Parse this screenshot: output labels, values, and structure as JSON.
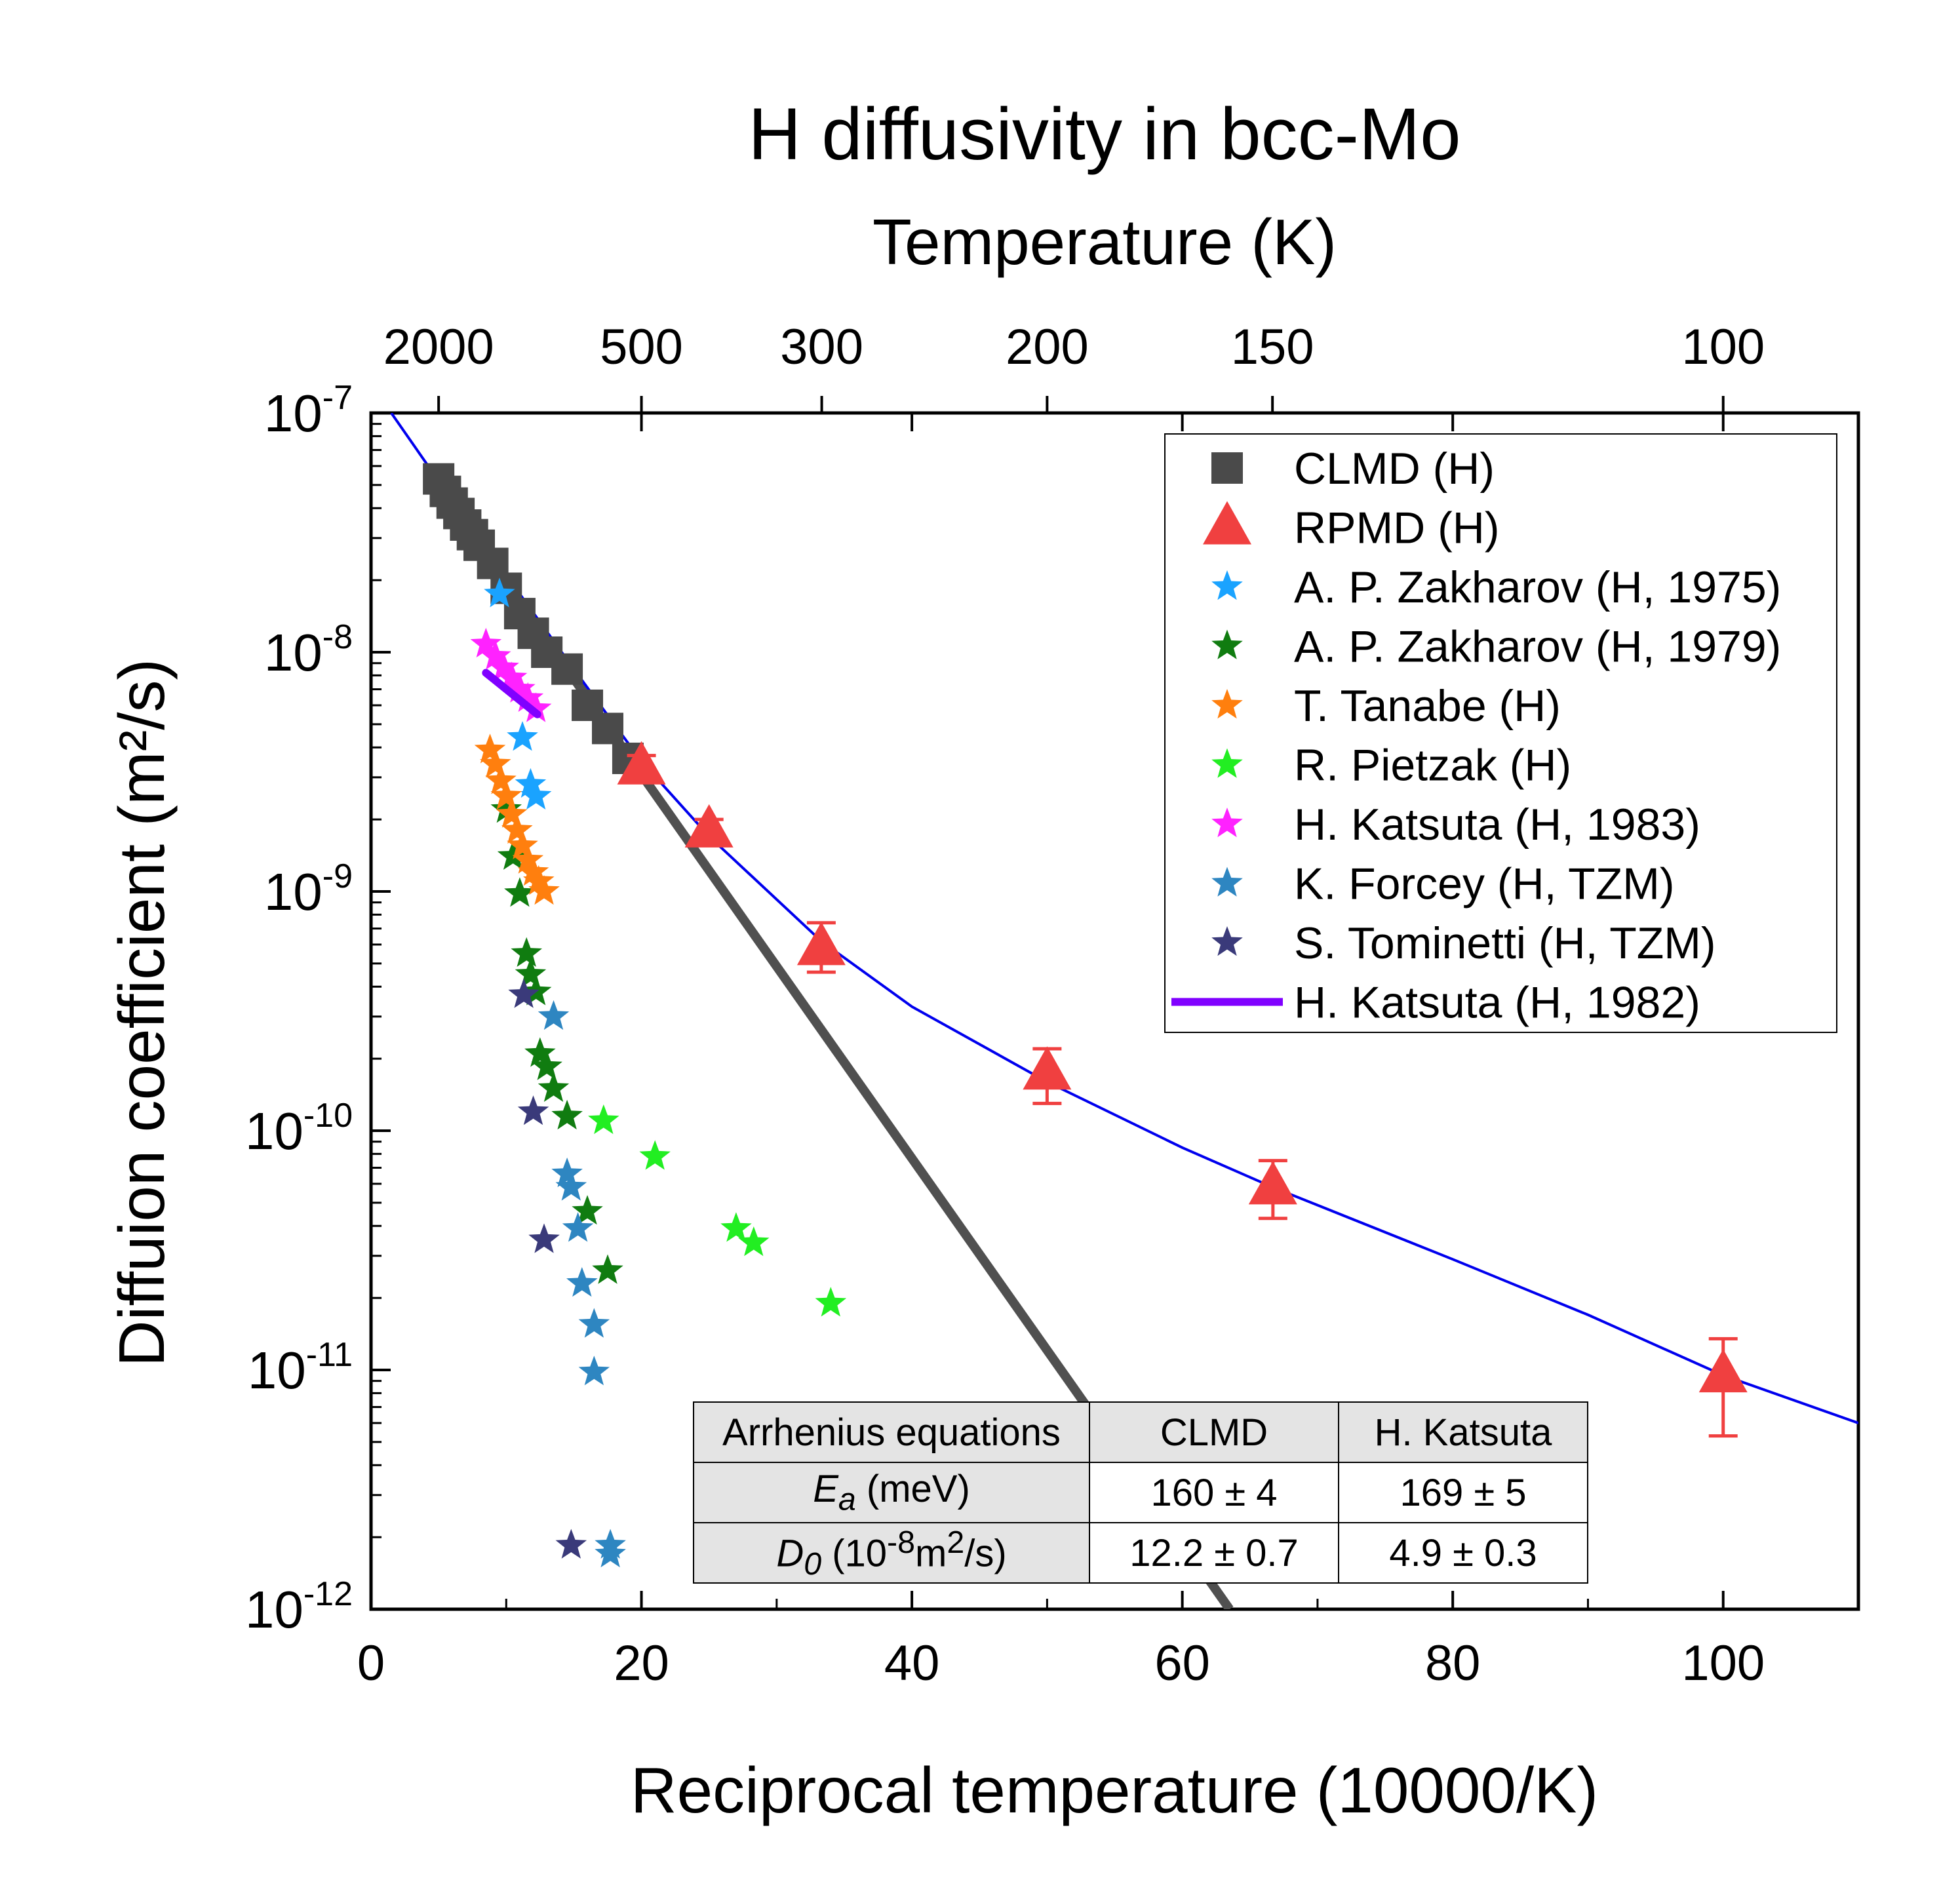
{
  "chart_data": {
    "type": "scatter",
    "title": "H diffusivity in bcc-Mo",
    "top_axis_label": "Temperature (K)",
    "top_ticks": [
      2000,
      500,
      300,
      200,
      150,
      100
    ],
    "xlabel": "Reciprocal temperature (10000/K)",
    "ylabel": "Diffuion coefficient (m²/s)",
    "xlim": [
      0,
      110
    ],
    "ylim": [
      1e-12,
      1e-07
    ],
    "yscale": "log",
    "x_ticks": [
      0,
      20,
      40,
      60,
      80,
      100
    ],
    "y_tick_labels": [
      "10-12",
      "10-11",
      "10-10",
      "10-9",
      "10-8",
      "10-7"
    ],
    "legend_position": "top-right",
    "series": [
      {
        "name": "CLMD (H)",
        "marker": "square",
        "color": "#4a4a4a",
        "x": [
          5,
          5.5,
          6,
          6.5,
          7,
          7.5,
          8,
          9,
          10,
          11,
          12,
          13,
          14.5,
          16,
          17.5,
          19
        ],
        "y": [
          5.3e-08,
          4.7e-08,
          4.2e-08,
          3.8e-08,
          3.4e-08,
          3.1e-08,
          2.8e-08,
          2.35e-08,
          1.85e-08,
          1.45e-08,
          1.2e-08,
          1e-08,
          8.5e-09,
          6e-09,
          4.8e-09,
          3.6e-09
        ]
      },
      {
        "name": "RPMD (H)",
        "marker": "triangle",
        "color": "#f04040",
        "x": [
          20,
          25,
          33.3,
          50,
          66.7,
          100
        ],
        "y": [
          3.3e-09,
          1.8e-09,
          5.8e-10,
          1.75e-10,
          5.8e-11,
          9.5e-12
        ],
        "err_low": [
          2.9e-09,
          1.6e-09,
          4.6e-10,
          1.3e-10,
          4.3e-11,
          5.3e-12
        ],
        "err_high": [
          3.7e-09,
          2e-09,
          7.4e-10,
          2.2e-10,
          7.5e-11,
          1.35e-11
        ]
      },
      {
        "name": "A. P. Zakharov (H, 1975)",
        "marker": "star",
        "color": "#1aa3ff",
        "x": [
          9.5,
          11.2,
          11.8,
          12.2
        ],
        "y": [
          1.75e-08,
          4.4e-09,
          2.8e-09,
          2.5e-09
        ]
      },
      {
        "name": "A. P. Zakharov (H, 1979)",
        "marker": "star",
        "color": "#107c10",
        "x": [
          10,
          10.5,
          11,
          11.5,
          11.8,
          12.2,
          12.5,
          13,
          13.5,
          14.5,
          16,
          17.5
        ],
        "y": [
          2.2e-09,
          1.4e-09,
          9.8e-10,
          5.5e-10,
          4.5e-10,
          3.8e-10,
          2.1e-10,
          1.85e-10,
          1.5e-10,
          1.15e-10,
          4.6e-11,
          2.6e-11
        ]
      },
      {
        "name": "T. Tanabe (H)",
        "marker": "star",
        "color": "#ff7f0e",
        "x": [
          8.8,
          9.2,
          9.6,
          10,
          10.4,
          10.8,
          11.2,
          11.6,
          12,
          12.4,
          12.8
        ],
        "y": [
          3.9e-09,
          3.4e-09,
          2.9e-09,
          2.5e-09,
          2.1e-09,
          1.8e-09,
          1.55e-09,
          1.35e-09,
          1.2e-09,
          1.1e-09,
          1e-09
        ]
      },
      {
        "name": "R. Pietzak (H)",
        "marker": "star",
        "color": "#22ee22",
        "x": [
          17.2,
          21,
          27,
          28.3,
          34
        ],
        "y": [
          1.1e-10,
          7.8e-11,
          3.9e-11,
          3.4e-11,
          1.9e-11
        ]
      },
      {
        "name": "H. Katsuta (H, 1983)",
        "marker": "star",
        "color": "#ff22ff",
        "x": [
          8.5,
          9.2,
          9.8,
          10.4,
          11,
          11.6,
          12.2
        ],
        "y": [
          1.08e-08,
          9.6e-09,
          8.6e-09,
          7.8e-09,
          7e-09,
          6.4e-09,
          5.8e-09
        ]
      },
      {
        "name": "K. Forcey (H, TZM)",
        "marker": "star",
        "color": "#2e86c1",
        "x": [
          13.5,
          14.5,
          14.8,
          15.3,
          15.6,
          16.5,
          16.5,
          17.7,
          17.7
        ],
        "y": [
          3e-10,
          6.6e-11,
          5.8e-11,
          3.9e-11,
          2.3e-11,
          1.55e-11,
          9.8e-12,
          1.85e-12,
          1.7e-12
        ]
      },
      {
        "name": "S. Tominetti (H, TZM)",
        "marker": "star",
        "color": "#3a3a7a",
        "x": [
          11.3,
          12,
          12.8,
          14.8
        ],
        "y": [
          3.7e-10,
          1.2e-10,
          3.5e-11,
          1.85e-12
        ]
      },
      {
        "name": "H. Katsuta (H, 1982)",
        "marker": "line",
        "color": "#8000ff",
        "x": [
          8.5,
          12.3
        ],
        "y": [
          8.2e-09,
          5.5e-09
        ]
      }
    ],
    "fit_lines": [
      {
        "color": "#505050",
        "x": [
          4.2,
          63.5
        ],
        "y": [
          5.7e-08,
          1e-12
        ]
      },
      {
        "color": "#0000ee",
        "x": [
          1.5,
          5,
          10,
          15,
          20,
          25,
          33.3,
          40,
          50,
          60,
          66.7,
          80,
          90,
          100,
          110
        ],
        "y": [
          1e-07,
          5.2e-08,
          2.1e-08,
          8.5e-09,
          3.5e-09,
          1.7e-09,
          6.2e-10,
          3.3e-10,
          1.6e-10,
          8.5e-11,
          5.8e-11,
          2.9e-11,
          1.7e-11,
          9.5e-12,
          6e-12
        ]
      }
    ]
  },
  "table": {
    "headers": [
      "Arrhenius equations",
      "CLMD",
      "H. Katsuta"
    ],
    "row1": {
      "label_sym": "E",
      "label_sub": "a",
      "label_rest": " (meV)",
      "clmd": "160 ± 4",
      "katsuta": "169 ± 5"
    },
    "row2": {
      "label_sym": "D",
      "label_sub": "0",
      "label_rest1": " (10",
      "label_sup1": "-8",
      "label_rest2": "m",
      "label_sup2": "2",
      "label_rest3": "/s)",
      "clmd": "12.2 ± 0.7",
      "katsuta": "4.9 ± 0.3"
    }
  }
}
